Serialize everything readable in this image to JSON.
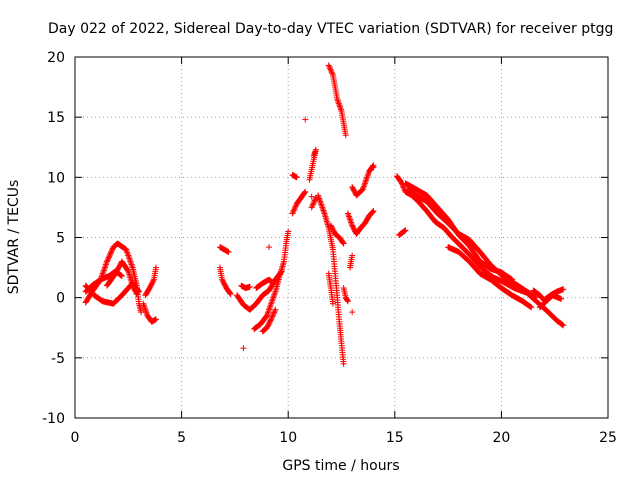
{
  "chart_data": {
    "type": "scatter",
    "title": "Day 022 of 2022, Sidereal Day-to-day VTEC variation (SDTVAR) for receiver ptgg",
    "xlabel": "GPS time / hours",
    "ylabel": "SDTVAR / TECUs",
    "xlim": [
      0,
      25
    ],
    "ylim": [
      -10,
      20
    ],
    "x_ticks": [
      0,
      5,
      10,
      15,
      20,
      25
    ],
    "y_ticks": [
      -10,
      -5,
      0,
      5,
      10,
      15,
      20
    ],
    "x_tick_labels": [
      "0",
      "5",
      "10",
      "15",
      "20",
      "25"
    ],
    "y_tick_labels": [
      "-10",
      "-5",
      "0",
      "5",
      "10",
      "15",
      "20"
    ],
    "grid": true,
    "marker": "+",
    "series_color": "#ff0000",
    "segments": [
      {
        "name": "arc-a",
        "points": [
          [
            0.5,
            1.0
          ],
          [
            0.9,
            0.2
          ],
          [
            1.3,
            -0.3
          ],
          [
            1.8,
            -0.5
          ],
          [
            2.2,
            0.2
          ],
          [
            2.7,
            1.2
          ],
          [
            3.0,
            0.5
          ]
        ]
      },
      {
        "name": "arc-b",
        "points": [
          [
            0.5,
            0.5
          ],
          [
            0.8,
            1.0
          ],
          [
            1.2,
            1.5
          ],
          [
            1.6,
            1.8
          ],
          [
            1.9,
            2.2
          ],
          [
            2.2,
            1.8
          ]
        ]
      },
      {
        "name": "arc-c",
        "points": [
          [
            0.5,
            -0.4
          ],
          [
            0.8,
            0.5
          ],
          [
            1.2,
            1.5
          ],
          [
            1.5,
            3.0
          ],
          [
            1.8,
            4.2
          ],
          [
            2.0,
            4.5
          ],
          [
            2.4,
            4.0
          ],
          [
            2.7,
            2.5
          ],
          [
            2.9,
            1.0
          ],
          [
            3.0,
            -0.5
          ],
          [
            3.1,
            -1.2
          ]
        ]
      },
      {
        "name": "arc-d",
        "points": [
          [
            1.5,
            1.0
          ],
          [
            1.9,
            2.0
          ],
          [
            2.2,
            3.0
          ],
          [
            2.5,
            2.2
          ],
          [
            2.7,
            1.0
          ],
          [
            2.9,
            0.3
          ]
        ]
      },
      {
        "name": "arc-e",
        "points": [
          [
            3.2,
            -0.5
          ],
          [
            3.4,
            -1.5
          ],
          [
            3.6,
            -2.0
          ],
          [
            3.8,
            -1.8
          ]
        ]
      },
      {
        "name": "arc-f",
        "points": [
          [
            3.3,
            0.2
          ],
          [
            3.5,
            0.8
          ],
          [
            3.7,
            1.5
          ],
          [
            3.8,
            2.5
          ]
        ]
      },
      {
        "name": "arc-g",
        "points": [
          [
            6.8,
            4.2
          ],
          [
            7.0,
            4.0
          ],
          [
            7.2,
            3.8
          ]
        ]
      },
      {
        "name": "arc-h",
        "points": [
          [
            6.8,
            2.5
          ],
          [
            6.9,
            1.5
          ],
          [
            7.1,
            0.8
          ],
          [
            7.3,
            0.3
          ]
        ]
      },
      {
        "name": "arc-i",
        "points": [
          [
            7.6,
            0.2
          ],
          [
            7.9,
            -0.6
          ],
          [
            8.2,
            -1.0
          ],
          [
            8.5,
            -0.5
          ],
          [
            8.8,
            0.2
          ],
          [
            9.1,
            0.6
          ],
          [
            9.4,
            1.5
          ],
          [
            9.7,
            2.2
          ]
        ]
      },
      {
        "name": "arc-j",
        "points": [
          [
            7.8,
            1.0
          ],
          [
            8.0,
            0.8
          ],
          [
            8.2,
            0.9
          ]
        ]
      },
      {
        "name": "arc-k",
        "points": [
          [
            8.5,
            0.8
          ],
          [
            8.8,
            1.2
          ],
          [
            9.1,
            1.5
          ],
          [
            9.3,
            1.2
          ]
        ]
      },
      {
        "name": "arc-l",
        "points": [
          [
            8.4,
            -2.6
          ],
          [
            8.7,
            -2.2
          ],
          [
            9.0,
            -1.5
          ],
          [
            9.2,
            -0.5
          ],
          [
            9.4,
            0.5
          ],
          [
            9.6,
            1.8
          ],
          [
            9.8,
            3.0
          ],
          [
            9.9,
            4.5
          ],
          [
            10.0,
            5.5
          ]
        ]
      },
      {
        "name": "arc-m",
        "points": [
          [
            8.8,
            -2.8
          ],
          [
            9.0,
            -2.5
          ],
          [
            9.2,
            -1.8
          ],
          [
            9.4,
            -1.0
          ]
        ]
      },
      {
        "name": "arc-n",
        "points": [
          [
            10.2,
            7.0
          ],
          [
            10.4,
            7.8
          ],
          [
            10.6,
            8.3
          ],
          [
            10.8,
            8.8
          ]
        ]
      },
      {
        "name": "arc-o",
        "points": [
          [
            10.2,
            10.2
          ],
          [
            10.4,
            10.0
          ]
        ]
      },
      {
        "name": "arc-p",
        "points": [
          [
            11.0,
            9.8
          ],
          [
            11.2,
            11.5
          ],
          [
            11.3,
            12.3
          ],
          [
            11.2,
            11.8
          ]
        ]
      },
      {
        "name": "arc-q",
        "points": [
          [
            11.1,
            7.5
          ],
          [
            11.3,
            8.3
          ]
        ]
      },
      {
        "name": "arc-r",
        "points": [
          [
            11.9,
            19.3
          ],
          [
            12.1,
            18.5
          ],
          [
            12.3,
            16.5
          ],
          [
            12.5,
            15.5
          ],
          [
            12.6,
            14.5
          ],
          [
            12.7,
            13.5
          ]
        ]
      },
      {
        "name": "arc-s",
        "points": [
          [
            11.4,
            8.5
          ],
          [
            11.7,
            7.0
          ],
          [
            11.9,
            5.8
          ],
          [
            12.1,
            4.0
          ],
          [
            12.2,
            2.0
          ],
          [
            12.3,
            0.0
          ],
          [
            12.4,
            -2.0
          ],
          [
            12.5,
            -3.8
          ],
          [
            12.6,
            -5.5
          ]
        ]
      },
      {
        "name": "arc-t",
        "points": [
          [
            11.9,
            2.0
          ],
          [
            12.0,
            0.8
          ],
          [
            12.1,
            -0.5
          ]
        ]
      },
      {
        "name": "arc-u",
        "points": [
          [
            12.0,
            6.0
          ],
          [
            12.2,
            5.3
          ],
          [
            12.4,
            5.0
          ],
          [
            12.6,
            4.5
          ]
        ]
      },
      {
        "name": "arc-v",
        "points": [
          [
            12.6,
            0.8
          ],
          [
            12.7,
            0.0
          ],
          [
            12.8,
            -0.3
          ]
        ]
      },
      {
        "name": "arc-w",
        "points": [
          [
            12.8,
            7.0
          ],
          [
            13.0,
            6.0
          ],
          [
            13.2,
            5.3
          ],
          [
            13.4,
            5.8
          ],
          [
            13.6,
            6.2
          ],
          [
            13.8,
            6.8
          ],
          [
            14.0,
            7.2
          ]
        ]
      },
      {
        "name": "arc-x",
        "points": [
          [
            13.0,
            9.2
          ],
          [
            13.2,
            8.5
          ],
          [
            13.5,
            9.0
          ],
          [
            13.8,
            10.5
          ],
          [
            14.0,
            11.0
          ]
        ]
      },
      {
        "name": "arc-y",
        "points": [
          [
            12.9,
            2.5
          ],
          [
            13.0,
            3.5
          ]
        ]
      },
      {
        "name": "arc-z",
        "points": [
          [
            15.1,
            10.1
          ],
          [
            15.3,
            9.6
          ],
          [
            15.5,
            8.8
          ],
          [
            15.8,
            8.5
          ],
          [
            16.1,
            8.0
          ],
          [
            16.5,
            7.2
          ],
          [
            16.9,
            6.3
          ],
          [
            17.3,
            5.8
          ],
          [
            17.7,
            5.0
          ],
          [
            18.1,
            4.3
          ],
          [
            18.6,
            3.4
          ],
          [
            19.1,
            2.4
          ],
          [
            19.6,
            1.7
          ],
          [
            20.1,
            1.3
          ],
          [
            20.6,
            0.8
          ],
          [
            21.2,
            0.4
          ],
          [
            21.7,
            -0.4
          ],
          [
            22.2,
            -1.2
          ],
          [
            22.6,
            -1.9
          ],
          [
            22.9,
            -2.3
          ]
        ]
      },
      {
        "name": "arc-za",
        "points": [
          [
            15.6,
            9.0
          ],
          [
            16.0,
            8.5
          ],
          [
            16.5,
            8.0
          ],
          [
            17.0,
            7.0
          ],
          [
            17.5,
            6.2
          ],
          [
            18.0,
            5.3
          ],
          [
            18.5,
            4.8
          ],
          [
            19.0,
            3.8
          ],
          [
            19.5,
            2.7
          ],
          [
            20.0,
            1.9
          ],
          [
            20.6,
            1.2
          ],
          [
            21.2,
            0.5
          ],
          [
            21.6,
            0.0
          ]
        ]
      },
      {
        "name": "arc-zb",
        "points": [
          [
            15.5,
            9.5
          ],
          [
            16.0,
            9.0
          ],
          [
            16.5,
            8.5
          ],
          [
            17.0,
            7.5
          ],
          [
            17.5,
            6.5
          ],
          [
            18.0,
            5.2
          ],
          [
            18.5,
            4.3
          ],
          [
            19.0,
            3.0
          ],
          [
            19.5,
            2.4
          ],
          [
            20.0,
            2.1
          ],
          [
            20.5,
            1.5
          ]
        ]
      },
      {
        "name": "arc-zc",
        "points": [
          [
            17.5,
            4.2
          ],
          [
            18.0,
            3.8
          ],
          [
            18.5,
            3.0
          ],
          [
            19.0,
            2.0
          ],
          [
            19.5,
            1.5
          ],
          [
            20.0,
            0.8
          ],
          [
            20.5,
            0.2
          ],
          [
            21.0,
            -0.3
          ],
          [
            21.4,
            -0.8
          ]
        ]
      },
      {
        "name": "arc-zd",
        "points": [
          [
            21.5,
            0.6
          ],
          [
            21.8,
            0.2
          ],
          [
            22.0,
            -0.2
          ],
          [
            22.3,
            0.2
          ],
          [
            22.6,
            0.5
          ],
          [
            22.9,
            0.7
          ]
        ]
      },
      {
        "name": "arc-ze",
        "points": [
          [
            21.8,
            -0.8
          ],
          [
            22.1,
            -0.3
          ],
          [
            22.4,
            0.2
          ],
          [
            22.8,
            -0.1
          ]
        ]
      },
      {
        "name": "arc-zf",
        "points": [
          [
            15.2,
            5.2
          ],
          [
            15.5,
            5.6
          ]
        ]
      }
    ],
    "isolated_points": [
      [
        7.9,
        -4.2
      ],
      [
        10.8,
        14.8
      ],
      [
        11.1,
        8.4
      ],
      [
        13.0,
        -1.2
      ],
      [
        14.0,
        10.8
      ],
      [
        9.1,
        4.2
      ]
    ]
  }
}
